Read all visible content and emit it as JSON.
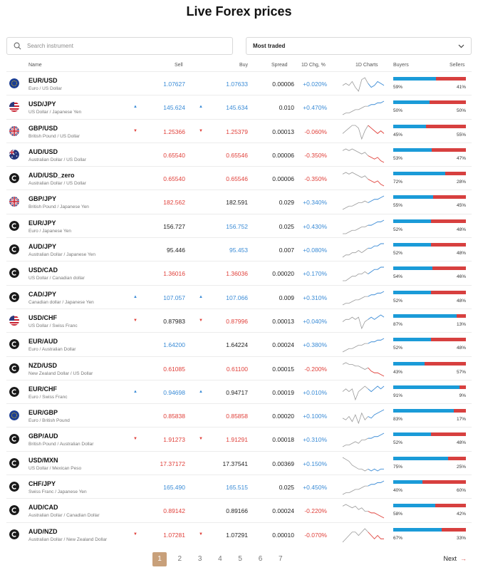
{
  "page": {
    "title": "Live Forex prices"
  },
  "search": {
    "placeholder": "Search instrument"
  },
  "filter": {
    "selected": "Most traded"
  },
  "table": {
    "headers": {
      "name": "Name",
      "sell": "Sell",
      "buy": "Buy",
      "spread": "Spread",
      "chg": "1D Chg, %",
      "charts": "1D Charts",
      "buyers": "Buyers",
      "sellers": "Sellers"
    },
    "rows": [
      {
        "symbol": "EUR/USD",
        "desc": "Euro / US Dollar",
        "flag": "eu-flag-icon",
        "arrow": "",
        "sell": "1.07627",
        "sell_color": "blue",
        "buy": "1.07633",
        "buy_color": "blue",
        "spread": "0.00006",
        "chg": "+0.020%",
        "buyers": "59%",
        "sellers": "41%",
        "buyers_frac": 0.59,
        "spark": [
          5,
          6,
          5,
          7,
          4,
          2,
          8,
          9,
          6,
          4,
          5,
          7,
          6,
          5
        ]
      },
      {
        "symbol": "USD/JPY",
        "desc": "US Dollar / Japanese Yen",
        "flag": "us-flag-icon",
        "arrow": "up",
        "sell": "145.624",
        "sell_color": "blue",
        "buy": "145.634",
        "buy_color": "blue",
        "spread": "0.010",
        "chg": "+0.470%",
        "buyers": "50%",
        "sellers": "50%",
        "buyers_frac": 0.5,
        "spark": [
          2,
          3,
          3,
          4,
          5,
          5,
          6,
          7,
          7,
          8,
          8,
          9,
          9,
          10
        ]
      },
      {
        "symbol": "GBP/USD",
        "desc": "British Pound / US Dollar",
        "flag": "uk-flag-icon",
        "arrow": "down",
        "sell": "1.25366",
        "sell_color": "red",
        "buy": "1.25379",
        "buy_color": "red",
        "spread": "0.00013",
        "chg": "-0.060%",
        "buyers": "45%",
        "sellers": "55%",
        "buyers_frac": 0.45,
        "spark": [
          5,
          6,
          7,
          8,
          8,
          7,
          3,
          6,
          8,
          7,
          6,
          5,
          6,
          5
        ]
      },
      {
        "symbol": "AUD/USD",
        "desc": "Australian Dollar / US Dollar",
        "flag": "au-flag-icon",
        "arrow": "",
        "sell": "0.65540",
        "sell_color": "red",
        "buy": "0.65546",
        "buy_color": "red",
        "spread": "0.00006",
        "chg": "-0.350%",
        "buyers": "53%",
        "sellers": "47%",
        "buyers_frac": 0.53,
        "spark": [
          8,
          9,
          8,
          9,
          8,
          7,
          6,
          7,
          5,
          4,
          3,
          4,
          2,
          1
        ]
      },
      {
        "symbol": "AUD/USD_zero",
        "desc": "Australian Dollar / US Dollar",
        "flag": "brand-icon",
        "arrow": "",
        "sell": "0.65540",
        "sell_color": "red",
        "buy": "0.65546",
        "buy_color": "red",
        "spread": "0.00006",
        "chg": "-0.350%",
        "buyers": "72%",
        "sellers": "28%",
        "buyers_frac": 0.72,
        "spark": [
          8,
          9,
          8,
          9,
          8,
          7,
          6,
          7,
          5,
          4,
          3,
          4,
          2,
          1
        ]
      },
      {
        "symbol": "GBP/JPY",
        "desc": "British Pound / Japanese Yen",
        "flag": "uk-flag-icon",
        "arrow": "",
        "sell": "182.562",
        "sell_color": "red",
        "buy": "182.591",
        "buy_color": "black",
        "spread": "0.029",
        "chg": "+0.340%",
        "buyers": "55%",
        "sellers": "45%",
        "buyers_frac": 0.55,
        "spark": [
          2,
          3,
          4,
          4,
          5,
          6,
          6,
          7,
          6,
          7,
          8,
          8,
          9,
          10
        ]
      },
      {
        "symbol": "EUR/JPY",
        "desc": "Euro / Japanese Yen",
        "flag": "brand-icon",
        "arrow": "",
        "sell": "156.727",
        "sell_color": "black",
        "buy": "156.752",
        "buy_color": "blue",
        "spread": "0.025",
        "chg": "+0.430%",
        "buyers": "52%",
        "sellers": "48%",
        "buyers_frac": 0.52,
        "spark": [
          2,
          2,
          3,
          4,
          4,
          5,
          6,
          6,
          7,
          7,
          8,
          9,
          9,
          10
        ]
      },
      {
        "symbol": "AUD/JPY",
        "desc": "Australian Dollar / Japanese Yen",
        "flag": "brand-icon",
        "arrow": "",
        "sell": "95.446",
        "sell_color": "black",
        "buy": "95.453",
        "buy_color": "blue",
        "spread": "0.007",
        "chg": "+0.080%",
        "buyers": "52%",
        "sellers": "48%",
        "buyers_frac": 0.52,
        "spark": [
          3,
          4,
          4,
          5,
          5,
          6,
          5,
          6,
          7,
          7,
          8,
          8,
          9,
          9
        ]
      },
      {
        "symbol": "USD/CAD",
        "desc": "US Dollar / Canadian dollar",
        "flag": "brand-icon",
        "arrow": "",
        "sell": "1.36016",
        "sell_color": "red",
        "buy": "1.36036",
        "buy_color": "red",
        "spread": "0.00020",
        "chg": "+0.170%",
        "buyers": "54%",
        "sellers": "46%",
        "buyers_frac": 0.54,
        "spark": [
          3,
          3,
          4,
          5,
          5,
          6,
          6,
          7,
          6,
          7,
          8,
          8,
          9,
          9
        ]
      },
      {
        "symbol": "CAD/JPY",
        "desc": "Canadian dollar / Japanese Yen",
        "flag": "brand-icon",
        "arrow": "up",
        "sell": "107.057",
        "sell_color": "blue",
        "buy": "107.066",
        "buy_color": "blue",
        "spread": "0.009",
        "chg": "+0.310%",
        "buyers": "52%",
        "sellers": "48%",
        "buyers_frac": 0.52,
        "spark": [
          2,
          3,
          3,
          4,
          5,
          5,
          6,
          7,
          7,
          8,
          8,
          9,
          9,
          10
        ]
      },
      {
        "symbol": "USD/CHF",
        "desc": "US Dollar / Swiss Franc",
        "flag": "us-flag-icon",
        "arrow": "down",
        "sell": "0.87983",
        "sell_color": "black",
        "buy": "0.87996",
        "buy_color": "red",
        "spread": "0.00013",
        "chg": "+0.040%",
        "buyers": "87%",
        "sellers": "13%",
        "buyers_frac": 0.87,
        "spark": [
          5,
          6,
          6,
          7,
          6,
          7,
          2,
          5,
          6,
          7,
          6,
          7,
          8,
          7
        ]
      },
      {
        "symbol": "EUR/AUD",
        "desc": "Euro / Australian Dollar",
        "flag": "brand-icon",
        "arrow": "",
        "sell": "1.64200",
        "sell_color": "blue",
        "buy": "1.64224",
        "buy_color": "black",
        "spread": "0.00024",
        "chg": "+0.380%",
        "buyers": "52%",
        "sellers": "48%",
        "buyers_frac": 0.52,
        "spark": [
          2,
          3,
          4,
          4,
          5,
          6,
          6,
          7,
          7,
          8,
          8,
          9,
          9,
          10
        ]
      },
      {
        "symbol": "NZD/USD",
        "desc": "New Zealand Dollar / US Dollar",
        "flag": "brand-icon",
        "arrow": "",
        "sell": "0.61085",
        "sell_color": "red",
        "buy": "0.61100",
        "buy_color": "red",
        "spread": "0.00015",
        "chg": "-0.200%",
        "buyers": "43%",
        "sellers": "57%",
        "buyers_frac": 0.43,
        "spark": [
          8,
          9,
          8,
          8,
          7,
          7,
          6,
          5,
          6,
          4,
          3,
          3,
          2,
          1
        ]
      },
      {
        "symbol": "EUR/CHF",
        "desc": "Euro / Swiss Franc",
        "flag": "brand-icon",
        "arrow": "up",
        "sell": "0.94698",
        "sell_color": "blue",
        "buy": "0.94717",
        "buy_color": "black",
        "spread": "0.00019",
        "chg": "+0.010%",
        "buyers": "91%",
        "sellers": "9%",
        "buyers_frac": 0.91,
        "spark": [
          6,
          7,
          6,
          7,
          3,
          6,
          7,
          8,
          7,
          6,
          7,
          8,
          7,
          8
        ]
      },
      {
        "symbol": "EUR/GBP",
        "desc": "Euro / British Pound",
        "flag": "eu-flag-icon",
        "arrow": "",
        "sell": "0.85838",
        "sell_color": "red",
        "buy": "0.85858",
        "buy_color": "red",
        "spread": "0.00020",
        "chg": "+0.100%",
        "buyers": "83%",
        "sellers": "17%",
        "buyers_frac": 0.83,
        "spark": [
          5,
          4,
          6,
          3,
          7,
          2,
          8,
          4,
          6,
          5,
          7,
          8,
          9,
          10
        ]
      },
      {
        "symbol": "GBP/AUD",
        "desc": "British Pound / Australian Dollar",
        "flag": "brand-icon",
        "arrow": "down",
        "sell": "1.91273",
        "sell_color": "red",
        "buy": "1.91291",
        "buy_color": "red",
        "spread": "0.00018",
        "chg": "+0.310%",
        "buyers": "52%",
        "sellers": "48%",
        "buyers_frac": 0.52,
        "spark": [
          2,
          3,
          3,
          4,
          5,
          4,
          6,
          6,
          7,
          7,
          8,
          8,
          9,
          10
        ]
      },
      {
        "symbol": "USD/MXN",
        "desc": "US Dollar / Mexican Peso",
        "flag": "brand-icon",
        "arrow": "",
        "sell": "17.37172",
        "sell_color": "red",
        "buy": "17.37541",
        "buy_color": "black",
        "spread": "0.00369",
        "chg": "+0.150%",
        "buyers": "75%",
        "sellers": "25%",
        "buyers_frac": 0.75,
        "spark": [
          9,
          8,
          7,
          5,
          4,
          3,
          3,
          2,
          3,
          2,
          3,
          2,
          3,
          3
        ]
      },
      {
        "symbol": "CHF/JPY",
        "desc": "Swiss Franc / Japanese Yen",
        "flag": "brand-icon",
        "arrow": "",
        "sell": "165.490",
        "sell_color": "blue",
        "buy": "165.515",
        "buy_color": "blue",
        "spread": "0.025",
        "chg": "+0.450%",
        "buyers": "40%",
        "sellers": "60%",
        "buyers_frac": 0.4,
        "spark": [
          2,
          3,
          3,
          4,
          5,
          5,
          6,
          7,
          7,
          8,
          8,
          9,
          9,
          10
        ]
      },
      {
        "symbol": "AUD/CAD",
        "desc": "Australian Dollar / Canadian Dollar",
        "flag": "brand-icon",
        "arrow": "",
        "sell": "0.89142",
        "sell_color": "red",
        "buy": "0.89166",
        "buy_color": "black",
        "spread": "0.00024",
        "chg": "-0.220%",
        "buyers": "58%",
        "sellers": "42%",
        "buyers_frac": 0.58,
        "spark": [
          8,
          9,
          8,
          7,
          8,
          6,
          7,
          5,
          5,
          4,
          4,
          3,
          2,
          1
        ]
      },
      {
        "symbol": "AUD/NZD",
        "desc": "Australian Dollar / New Zealand Dollar",
        "flag": "brand-icon",
        "arrow": "down",
        "sell": "1.07281",
        "sell_color": "red",
        "buy": "1.07291",
        "buy_color": "black",
        "spread": "0.00010",
        "chg": "-0.070%",
        "buyers": "67%",
        "sellers": "33%",
        "buyers_frac": 0.67,
        "spark": [
          5,
          6,
          7,
          8,
          8,
          7,
          8,
          9,
          8,
          7,
          6,
          7,
          6,
          6
        ]
      }
    ]
  },
  "pagination": {
    "pages": [
      "1",
      "2",
      "3",
      "4",
      "5",
      "6",
      "7"
    ],
    "active": "1",
    "next": "Next"
  },
  "colors": {
    "blue": "#3a8bd6",
    "red": "#e0403a",
    "bar_blue": "#1b9bd8",
    "bar_red": "#d7403f",
    "active_page": "#c8a07a"
  }
}
